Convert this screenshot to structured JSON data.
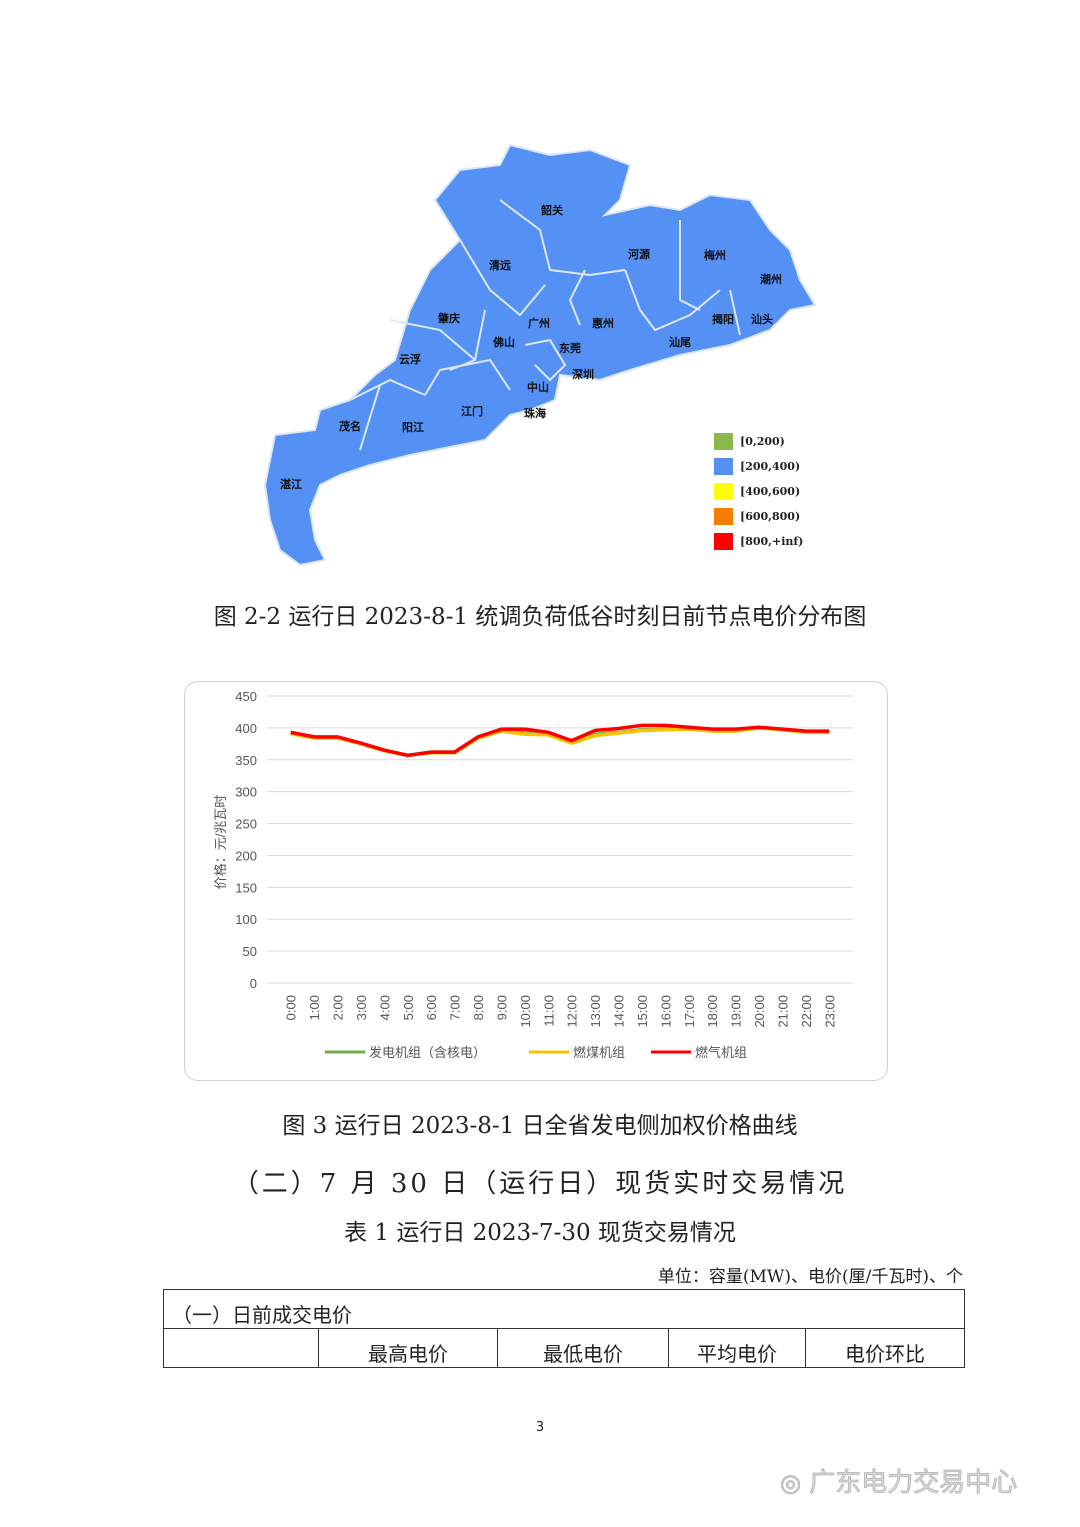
{
  "map": {
    "caption": "图 2-2  运行日 2023-8-1 统调负荷低谷时刻日前节点电价分布图",
    "regions": [
      "韶关",
      "清远",
      "河源",
      "梅州",
      "潮州",
      "肇庆",
      "广州",
      "惠州",
      "揭阳",
      "汕头",
      "佛山",
      "东莞",
      "汕尾",
      "云浮",
      "深圳",
      "中山",
      "江门",
      "珠海",
      "茂名",
      "阳江",
      "湛江"
    ],
    "fill_color": "#5590f5",
    "legend": [
      {
        "label": "[0,200)",
        "color": "#8ab84a"
      },
      {
        "label": "[200,400)",
        "color": "#5590f5"
      },
      {
        "label": "[400,600)",
        "color": "#ffff00"
      },
      {
        "label": "[600,800)",
        "color": "#f57c00"
      },
      {
        "label": "[800,+inf)",
        "color": "#ff0000"
      }
    ]
  },
  "chart_data": {
    "type": "line",
    "title": "",
    "caption": "图 3  运行日 2023-8-1 日全省发电侧加权价格曲线",
    "ylabel": "价格：元/兆瓦时",
    "ylim": [
      0,
      450
    ],
    "yticks": [
      0,
      50,
      100,
      150,
      200,
      250,
      300,
      350,
      400,
      450
    ],
    "grid": true,
    "legend_position": "bottom",
    "categories": [
      "0:00",
      "1:00",
      "2:00",
      "3:00",
      "4:00",
      "5:00",
      "6:00",
      "7:00",
      "8:00",
      "9:00",
      "10:00",
      "11:00",
      "12:00",
      "13:00",
      "14:00",
      "15:00",
      "16:00",
      "17:00",
      "18:00",
      "19:00",
      "20:00",
      "21:00",
      "22:00",
      "23:00"
    ],
    "series": [
      {
        "name": "发电机组（含核电）",
        "color": "#70ad47",
        "values": [
          392,
          385,
          385,
          376,
          365,
          357,
          362,
          362,
          385,
          396,
          392,
          391,
          378,
          390,
          393,
          397,
          398,
          399,
          396,
          396,
          400,
          398,
          394,
          394
        ]
      },
      {
        "name": "燃煤机组",
        "color": "#ffc000",
        "values": [
          391,
          384,
          384,
          375,
          364,
          357,
          361,
          361,
          384,
          395,
          390,
          389,
          376,
          388,
          392,
          396,
          397,
          398,
          395,
          395,
          400,
          397,
          393,
          393
        ]
      },
      {
        "name": "燃气机组",
        "color": "#ff0000",
        "values": [
          393,
          386,
          386,
          376,
          365,
          357,
          362,
          362,
          386,
          398,
          398,
          393,
          380,
          396,
          399,
          404,
          404,
          401,
          398,
          398,
          401,
          398,
          395,
          395
        ]
      }
    ]
  },
  "section": {
    "heading": "（二）7 月 30 日（运行日）现货实时交易情况",
    "table_title": "表 1  运行日 2023-7-30 现货交易情况",
    "unit": "单位：容量(MW)、电价(厘/千瓦时)、个"
  },
  "table": {
    "group_row": "（一）日前成交电价",
    "headers": [
      "",
      "最高电价",
      "最低电价",
      "平均电价",
      "电价环比"
    ]
  },
  "footer": {
    "page_number": "3",
    "watermark": "广东电力交易中心"
  }
}
